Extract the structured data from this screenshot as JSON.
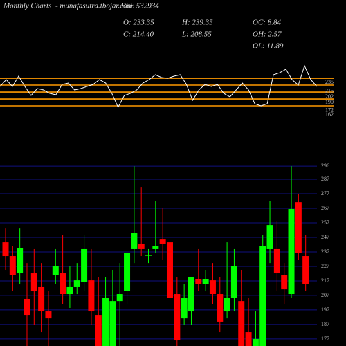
{
  "header": {
    "title": "Monthly Charts",
    "site": "- munafasutra.tbojar.com",
    "symbol": "BSE 532934",
    "open": "O: 233.35",
    "close": "C: 214.40",
    "high": "H: 239.35",
    "low": "L: 208.55",
    "oc": "OC: 8.84",
    "oh": "OH: 2.57",
    "ol": "OL: 11.89"
  },
  "chart_data": [
    {
      "type": "line",
      "color": "#ffffff",
      "level_color": "#ff9900",
      "values": [
        225.7,
        241.2,
        225.7,
        249,
        225.7,
        205.5,
        221,
        217.9,
        210.2,
        207,
        230.3,
        233.4,
        217.9,
        221,
        225.7,
        230.3,
        241.2,
        233.4,
        210.2,
        179.1,
        205.5,
        210.2,
        217.9,
        233.4,
        241.2,
        252.1,
        245.9,
        244.3,
        249,
        252.1,
        230.3,
        194.6,
        217.9,
        230.3,
        225.7,
        230.3,
        210.2,
        202.4,
        217.9,
        233.4,
        217.9,
        186.9,
        182.2,
        186.9,
        252.1,
        256.7,
        264.5,
        241.2,
        228.8,
        272.3,
        241.2,
        225.7
      ],
      "levels": [
        244.3,
        228.8,
        213.2,
        197.7,
        182.2
      ],
      "ylim": [
        148,
        272.3
      ],
      "yticks": [
        235,
        215,
        202,
        190,
        172,
        162
      ]
    },
    {
      "type": "candlestick",
      "up_color": "#00ff00",
      "down_color": "#ff0000",
      "grid_color": "#101080",
      "open": [
        243.6,
        234.1,
        222.2,
        204.6,
        222.2,
        212.7,
        196,
        220.8,
        222.2,
        207.9,
        212.7,
        216.5,
        217.4,
        193.6,
        172.2,
        172.2,
        203.1,
        210.3,
        238.9,
        242.7,
        235,
        238.9,
        245.5,
        243.6,
        207.9,
        191.2,
        196,
        218.4,
        215,
        217.4,
        207.9,
        196,
        205.5,
        203.1,
        181.7,
        172.2,
        172.2,
        238.9,
        238.9,
        221.2,
        207.9,
        271.2,
        234.1
      ],
      "high": [
        253.1,
        241.2,
        253.1,
        229.3,
        238.9,
        229.3,
        210.3,
        238.9,
        248.4,
        227,
        229.3,
        248.4,
        238.9,
        219.8,
        219.8,
        224.6,
        229.3,
        236.5,
        296,
        281.7,
        238.9,
        272.2,
        267.4,
        248.4,
        219.8,
        215,
        219.8,
        238.9,
        224.6,
        229.3,
        219.8,
        243.6,
        238.9,
        224.6,
        205.5,
        196,
        248.4,
        272.2,
        257.9,
        229.3,
        296,
        277,
        248.4
      ],
      "low": [
        224.6,
        210.3,
        215,
        172.2,
        186.5,
        181.7,
        172.2,
        215,
        200.8,
        198.4,
        207.9,
        210.3,
        186.5,
        172.2,
        172.2,
        172.2,
        172.2,
        200.8,
        229.3,
        234.1,
        229.3,
        236.5,
        231.7,
        200.8,
        172.2,
        186.5,
        186.5,
        210.3,
        210.3,
        200.8,
        181.7,
        191.2,
        196,
        172.2,
        172.2,
        172.2,
        172.2,
        229.3,
        210.3,
        200.8,
        205.5,
        231.7,
        210.3
      ],
      "close": [
        234.1,
        220.8,
        239.8,
        193.6,
        210.3,
        196,
        191.2,
        227,
        207.9,
        212.7,
        217.4,
        238.9,
        196,
        172.2,
        205.5,
        203.1,
        207.9,
        236.5,
        250.3,
        238.9,
        235,
        240.8,
        242.7,
        205.5,
        176,
        205.5,
        219.8,
        215,
        218.4,
        207.9,
        188.9,
        205.5,
        227,
        172.2,
        172.2,
        177,
        241.2,
        255.5,
        222.2,
        211.2,
        266.5,
        236.5,
        215
      ],
      "ylim": [
        172.2,
        300.8
      ],
      "yticks": [
        296,
        287,
        277,
        267,
        257,
        247,
        237,
        227,
        217,
        207,
        197,
        187,
        177
      ]
    }
  ]
}
